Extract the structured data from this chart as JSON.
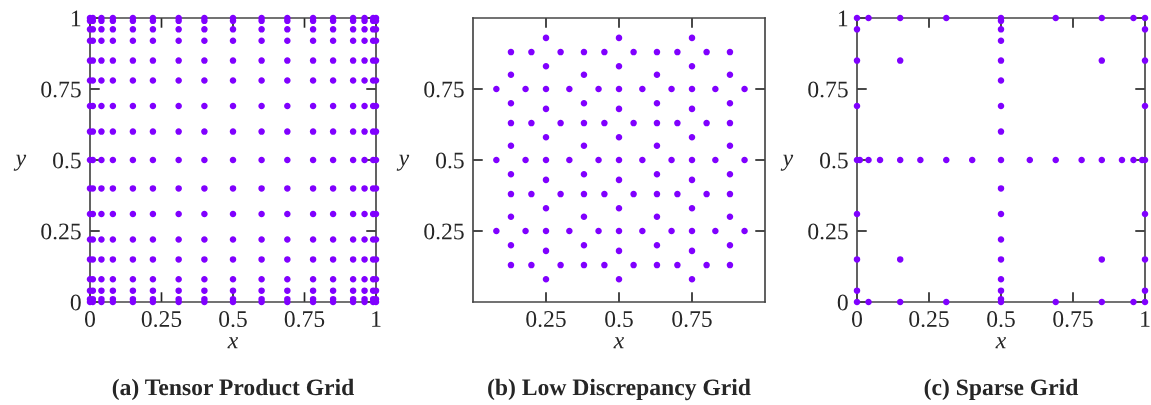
{
  "chart_data": [
    {
      "type": "scatter",
      "title": "(a) Tensor Product Grid",
      "xlabel": "x",
      "ylabel": "y",
      "xlim": [
        0,
        1
      ],
      "ylim": [
        0,
        1
      ],
      "xticks": [
        0,
        0.25,
        0.5,
        0.75,
        1
      ],
      "yticks": [
        0,
        0.25,
        0.5,
        0.75,
        1
      ],
      "marker": "circle",
      "series": [
        {
          "color": "#8000ff",
          "x": [
            0,
            0,
            0,
            0,
            0,
            0,
            0,
            0,
            0,
            0,
            0,
            0,
            0,
            0,
            0,
            0,
            0,
            0.01,
            0.01,
            0.01,
            0.01,
            0.01,
            0.01,
            0.01,
            0.01,
            0.01,
            0.01,
            0.01,
            0.01,
            0.01,
            0.01,
            0.01,
            0.01,
            0.01,
            0.04,
            0.04,
            0.04,
            0.04,
            0.04,
            0.04,
            0.04,
            0.04,
            0.04,
            0.04,
            0.04,
            0.04,
            0.04,
            0.04,
            0.04,
            0.04,
            0.04,
            0.08,
            0.08,
            0.08,
            0.08,
            0.08,
            0.08,
            0.08,
            0.08,
            0.08,
            0.08,
            0.08,
            0.08,
            0.08,
            0.08,
            0.08,
            0.08,
            0.08,
            0.15,
            0.15,
            0.15,
            0.15,
            0.15,
            0.15,
            0.15,
            0.15,
            0.15,
            0.15,
            0.15,
            0.15,
            0.15,
            0.15,
            0.15,
            0.15,
            0.15,
            0.22,
            0.22,
            0.22,
            0.22,
            0.22,
            0.22,
            0.22,
            0.22,
            0.22,
            0.22,
            0.22,
            0.22,
            0.22,
            0.22,
            0.22,
            0.22,
            0.22,
            0.31,
            0.31,
            0.31,
            0.31,
            0.31,
            0.31,
            0.31,
            0.31,
            0.31,
            0.31,
            0.31,
            0.31,
            0.31,
            0.31,
            0.31,
            0.31,
            0.31,
            0.4,
            0.4,
            0.4,
            0.4,
            0.4,
            0.4,
            0.4,
            0.4,
            0.4,
            0.4,
            0.4,
            0.4,
            0.4,
            0.4,
            0.4,
            0.4,
            0.4,
            0.5,
            0.5,
            0.5,
            0.5,
            0.5,
            0.5,
            0.5,
            0.5,
            0.5,
            0.5,
            0.5,
            0.5,
            0.5,
            0.5,
            0.5,
            0.5,
            0.5,
            0.6,
            0.6,
            0.6,
            0.6,
            0.6,
            0.6,
            0.6,
            0.6,
            0.6,
            0.6,
            0.6,
            0.6,
            0.6,
            0.6,
            0.6,
            0.6,
            0.6,
            0.69,
            0.69,
            0.69,
            0.69,
            0.69,
            0.69,
            0.69,
            0.69,
            0.69,
            0.69,
            0.69,
            0.69,
            0.69,
            0.69,
            0.69,
            0.69,
            0.69,
            0.78,
            0.78,
            0.78,
            0.78,
            0.78,
            0.78,
            0.78,
            0.78,
            0.78,
            0.78,
            0.78,
            0.78,
            0.78,
            0.78,
            0.78,
            0.78,
            0.78,
            0.85,
            0.85,
            0.85,
            0.85,
            0.85,
            0.85,
            0.85,
            0.85,
            0.85,
            0.85,
            0.85,
            0.85,
            0.85,
            0.85,
            0.85,
            0.85,
            0.85,
            0.92,
            0.92,
            0.92,
            0.92,
            0.92,
            0.92,
            0.92,
            0.92,
            0.92,
            0.92,
            0.92,
            0.92,
            0.92,
            0.92,
            0.92,
            0.92,
            0.92,
            0.96,
            0.96,
            0.96,
            0.96,
            0.96,
            0.96,
            0.96,
            0.96,
            0.96,
            0.96,
            0.96,
            0.96,
            0.96,
            0.96,
            0.96,
            0.96,
            0.96,
            0.99,
            0.99,
            0.99,
            0.99,
            0.99,
            0.99,
            0.99,
            0.99,
            0.99,
            0.99,
            0.99,
            0.99,
            0.99,
            0.99,
            0.99,
            0.99,
            0.99,
            1,
            1,
            1,
            1,
            1,
            1,
            1,
            1,
            1,
            1,
            1,
            1,
            1,
            1,
            1,
            1,
            1
          ],
          "values": [
            0,
            0.01,
            0.04,
            0.08,
            0.15,
            0.22,
            0.31,
            0.4,
            0.5,
            0.6,
            0.69,
            0.78,
            0.85,
            0.92,
            0.96,
            0.99,
            1,
            0,
            0.01,
            0.04,
            0.08,
            0.15,
            0.22,
            0.31,
            0.4,
            0.5,
            0.6,
            0.69,
            0.78,
            0.85,
            0.92,
            0.96,
            0.99,
            1,
            0,
            0.01,
            0.04,
            0.08,
            0.15,
            0.22,
            0.31,
            0.4,
            0.5,
            0.6,
            0.69,
            0.78,
            0.85,
            0.92,
            0.96,
            0.99,
            1,
            0,
            0.01,
            0.04,
            0.08,
            0.15,
            0.22,
            0.31,
            0.4,
            0.5,
            0.6,
            0.69,
            0.78,
            0.85,
            0.92,
            0.96,
            0.99,
            1,
            0,
            0.01,
            0.04,
            0.08,
            0.15,
            0.22,
            0.31,
            0.4,
            0.5,
            0.6,
            0.69,
            0.78,
            0.85,
            0.92,
            0.96,
            0.99,
            1,
            0,
            0.01,
            0.04,
            0.08,
            0.15,
            0.22,
            0.31,
            0.4,
            0.5,
            0.6,
            0.69,
            0.78,
            0.85,
            0.92,
            0.96,
            0.99,
            1,
            0,
            0.01,
            0.04,
            0.08,
            0.15,
            0.22,
            0.31,
            0.4,
            0.5,
            0.6,
            0.69,
            0.78,
            0.85,
            0.92,
            0.96,
            0.99,
            1,
            0,
            0.01,
            0.04,
            0.08,
            0.15,
            0.22,
            0.31,
            0.4,
            0.5,
            0.6,
            0.69,
            0.78,
            0.85,
            0.92,
            0.96,
            0.99,
            1,
            0,
            0.01,
            0.04,
            0.08,
            0.15,
            0.22,
            0.31,
            0.4,
            0.5,
            0.6,
            0.69,
            0.78,
            0.85,
            0.92,
            0.96,
            0.99,
            1,
            0,
            0.01,
            0.04,
            0.08,
            0.15,
            0.22,
            0.31,
            0.4,
            0.5,
            0.6,
            0.69,
            0.78,
            0.85,
            0.92,
            0.96,
            0.99,
            1,
            0,
            0.01,
            0.04,
            0.08,
            0.15,
            0.22,
            0.31,
            0.4,
            0.5,
            0.6,
            0.69,
            0.78,
            0.85,
            0.92,
            0.96,
            0.99,
            1,
            0,
            0.01,
            0.04,
            0.08,
            0.15,
            0.22,
            0.31,
            0.4,
            0.5,
            0.6,
            0.69,
            0.78,
            0.85,
            0.92,
            0.96,
            0.99,
            1,
            0,
            0.01,
            0.04,
            0.08,
            0.15,
            0.22,
            0.31,
            0.4,
            0.5,
            0.6,
            0.69,
            0.78,
            0.85,
            0.92,
            0.96,
            0.99,
            1,
            0,
            0.01,
            0.04,
            0.08,
            0.15,
            0.22,
            0.31,
            0.4,
            0.5,
            0.6,
            0.69,
            0.78,
            0.85,
            0.92,
            0.96,
            0.99,
            1,
            0,
            0.01,
            0.04,
            0.08,
            0.15,
            0.22,
            0.31,
            0.4,
            0.5,
            0.6,
            0.69,
            0.78,
            0.85,
            0.92,
            0.96,
            0.99,
            1,
            0,
            0.01,
            0.04,
            0.08,
            0.15,
            0.22,
            0.31,
            0.4,
            0.5,
            0.6,
            0.69,
            0.78,
            0.85,
            0.92,
            0.96,
            0.99,
            1,
            0,
            0.01,
            0.04,
            0.08,
            0.15,
            0.22,
            0.31,
            0.4,
            0.5,
            0.6,
            0.69,
            0.78,
            0.85,
            0.92,
            0.96,
            0.99,
            1
          ]
        }
      ]
    },
    {
      "type": "scatter",
      "title": "(b) Low Discrepancy Grid",
      "xlabel": "x",
      "ylabel": "y",
      "xlim": [
        0,
        1
      ],
      "ylim": [
        0,
        1
      ],
      "xticks": [
        0.25,
        0.5,
        0.75
      ],
      "yticks": [
        0.25,
        0.5,
        0.75
      ],
      "marker": "circle",
      "series": [
        {
          "color": "#8000ff",
          "x": [
            0.13,
            0.38,
            0.63,
            0.88,
            0.25,
            0.5,
            0.75,
            0.13,
            0.38,
            0.63,
            0.88,
            0.25,
            0.5,
            0.75,
            0.13,
            0.38,
            0.63,
            0.88,
            0.25,
            0.5,
            0.75,
            0.13,
            0.38,
            0.63,
            0.88,
            0.2,
            0.3,
            0.25,
            0.25,
            0.45,
            0.55,
            0.5,
            0.5,
            0.7,
            0.8,
            0.75,
            0.75,
            0.08,
            0.18,
            0.13,
            0.13,
            0.33,
            0.43,
            0.38,
            0.38,
            0.58,
            0.68,
            0.63,
            0.63,
            0.83,
            0.93,
            0.88,
            0.88,
            0.2,
            0.3,
            0.25,
            0.25,
            0.45,
            0.55,
            0.5,
            0.5,
            0.7,
            0.8,
            0.75,
            0.75,
            0.08,
            0.18,
            0.13,
            0.13,
            0.33,
            0.43,
            0.38,
            0.38,
            0.58,
            0.68,
            0.63,
            0.63,
            0.83,
            0.93,
            0.88,
            0.88,
            0.2,
            0.3,
            0.25,
            0.25,
            0.45,
            0.55,
            0.5,
            0.5,
            0.7,
            0.8,
            0.75,
            0.75,
            0.08,
            0.18,
            0.13,
            0.13,
            0.33,
            0.43,
            0.38,
            0.38,
            0.58,
            0.68,
            0.63,
            0.63,
            0.83,
            0.93,
            0.88,
            0.88,
            0.2,
            0.3,
            0.25,
            0.25,
            0.45,
            0.55,
            0.5,
            0.5,
            0.7,
            0.8,
            0.75,
            0.75
          ],
          "values": [
            0.13,
            0.13,
            0.13,
            0.13,
            0.25,
            0.25,
            0.25,
            0.38,
            0.38,
            0.38,
            0.38,
            0.5,
            0.5,
            0.5,
            0.63,
            0.63,
            0.63,
            0.63,
            0.75,
            0.75,
            0.75,
            0.88,
            0.88,
            0.88,
            0.88,
            0.13,
            0.13,
            0.08,
            0.18,
            0.13,
            0.13,
            0.08,
            0.18,
            0.13,
            0.13,
            0.08,
            0.18,
            0.25,
            0.25,
            0.2,
            0.3,
            0.25,
            0.25,
            0.2,
            0.3,
            0.25,
            0.25,
            0.2,
            0.3,
            0.25,
            0.25,
            0.2,
            0.3,
            0.38,
            0.38,
            0.33,
            0.43,
            0.38,
            0.38,
            0.33,
            0.43,
            0.38,
            0.38,
            0.33,
            0.43,
            0.5,
            0.5,
            0.45,
            0.55,
            0.5,
            0.5,
            0.45,
            0.55,
            0.5,
            0.5,
            0.45,
            0.55,
            0.5,
            0.5,
            0.45,
            0.55,
            0.63,
            0.63,
            0.58,
            0.68,
            0.63,
            0.63,
            0.58,
            0.68,
            0.63,
            0.63,
            0.58,
            0.68,
            0.75,
            0.75,
            0.7,
            0.8,
            0.75,
            0.75,
            0.7,
            0.8,
            0.75,
            0.75,
            0.7,
            0.8,
            0.75,
            0.75,
            0.7,
            0.8,
            0.88,
            0.88,
            0.83,
            0.93,
            0.88,
            0.88,
            0.83,
            0.93,
            0.88,
            0.88,
            0.83,
            0.93
          ]
        }
      ]
    },
    {
      "type": "scatter",
      "title": "(c) Sparse Grid",
      "xlabel": "x",
      "ylabel": "y",
      "xlim": [
        0,
        1
      ],
      "ylim": [
        0,
        1
      ],
      "xticks": [
        0,
        0.25,
        0.5,
        0.75,
        1
      ],
      "yticks": [
        0,
        0.25,
        0.5,
        0.75,
        1
      ],
      "marker": "circle",
      "series": [
        {
          "color": "#8000ff",
          "x": [
            0,
            0.04,
            0.15,
            0.31,
            0.5,
            0.69,
            0.85,
            0.96,
            1,
            0,
            0.04,
            0.15,
            0.31,
            0.5,
            0.69,
            0.85,
            0.96,
            1,
            0,
            0,
            0,
            0,
            0,
            0,
            0,
            1,
            1,
            1,
            1,
            1,
            1,
            1,
            0.5,
            0.5,
            0.5,
            0.5,
            0.5,
            0.5,
            0.5,
            0.5,
            0.5,
            0.5,
            0.5,
            0.5,
            0.5,
            0.5,
            0.5,
            0.01,
            0.04,
            0.08,
            0.15,
            0.22,
            0.31,
            0.4,
            0.6,
            0.69,
            0.78,
            0.85,
            0.92,
            0.96,
            0.99,
            0.15,
            0.15,
            0.85,
            0.85
          ],
          "values": [
            0,
            0,
            0,
            0,
            0,
            0,
            0,
            0,
            0,
            1,
            1,
            1,
            1,
            1,
            1,
            1,
            1,
            1,
            0.04,
            0.15,
            0.31,
            0.5,
            0.69,
            0.85,
            0.96,
            0.04,
            0.15,
            0.31,
            0.5,
            0.69,
            0.85,
            0.96,
            0.01,
            0.04,
            0.08,
            0.15,
            0.22,
            0.31,
            0.4,
            0.5,
            0.6,
            0.69,
            0.78,
            0.85,
            0.92,
            0.96,
            0.99,
            0.5,
            0.5,
            0.5,
            0.5,
            0.5,
            0.5,
            0.5,
            0.5,
            0.5,
            0.5,
            0.5,
            0.5,
            0.5,
            0.5,
            0.15,
            0.85,
            0.15,
            0.85
          ]
        }
      ]
    }
  ]
}
